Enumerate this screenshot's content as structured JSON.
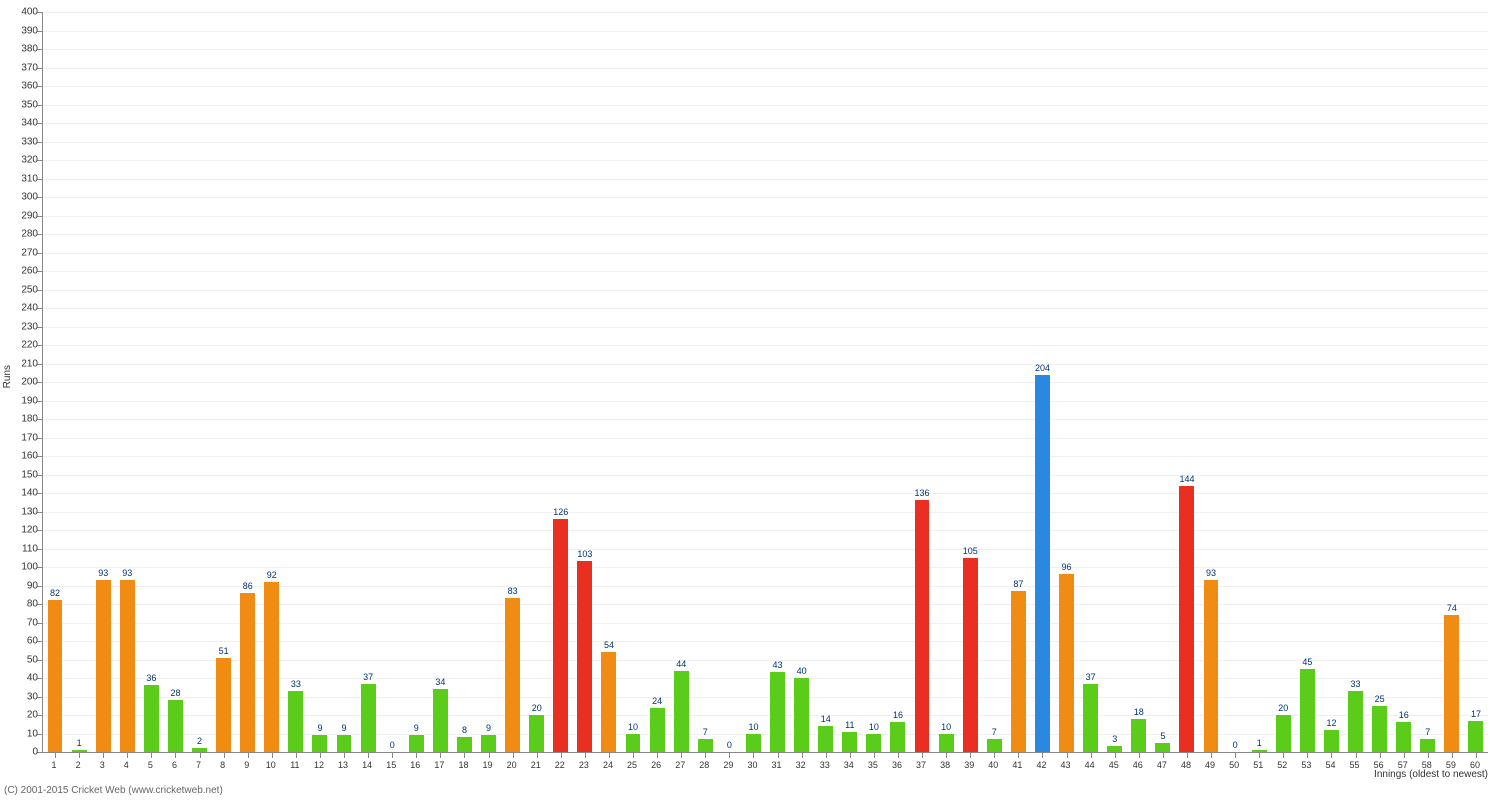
{
  "chart": {
    "type": "bar",
    "y_axis_title": "Runs",
    "x_axis_title": "Innings (oldest to newest)",
    "copyright": "(C) 2001-2015 Cricket Web (www.cricketweb.net)",
    "ylim": [
      0,
      400
    ],
    "ytick_step": 10,
    "background_color": "#ffffff",
    "grid_color": "#f0f0f0",
    "axis_color": "#888888",
    "label_fontsize": 10,
    "value_label_color": "#003377",
    "value_label_fontsize": 9,
    "colors": {
      "green": "#5bcc1a",
      "orange": "#f08b13",
      "red": "#e82f22",
      "blue": "#2a88e0"
    },
    "bar_width_ratio": 0.62,
    "bars": [
      {
        "x": 1,
        "v": 82,
        "c": "orange"
      },
      {
        "x": 2,
        "v": 1,
        "c": "green"
      },
      {
        "x": 3,
        "v": 93,
        "c": "orange"
      },
      {
        "x": 4,
        "v": 93,
        "c": "orange"
      },
      {
        "x": 5,
        "v": 36,
        "c": "green"
      },
      {
        "x": 6,
        "v": 28,
        "c": "green"
      },
      {
        "x": 7,
        "v": 2,
        "c": "green"
      },
      {
        "x": 8,
        "v": 51,
        "c": "orange"
      },
      {
        "x": 9,
        "v": 86,
        "c": "orange"
      },
      {
        "x": 10,
        "v": 92,
        "c": "orange"
      },
      {
        "x": 11,
        "v": 33,
        "c": "green"
      },
      {
        "x": 12,
        "v": 9,
        "c": "green"
      },
      {
        "x": 13,
        "v": 9,
        "c": "green"
      },
      {
        "x": 14,
        "v": 37,
        "c": "green"
      },
      {
        "x": 15,
        "v": 0,
        "c": "green"
      },
      {
        "x": 16,
        "v": 9,
        "c": "green"
      },
      {
        "x": 17,
        "v": 34,
        "c": "green"
      },
      {
        "x": 18,
        "v": 8,
        "c": "green"
      },
      {
        "x": 19,
        "v": 9,
        "c": "green"
      },
      {
        "x": 20,
        "v": 83,
        "c": "orange"
      },
      {
        "x": 21,
        "v": 20,
        "c": "green"
      },
      {
        "x": 22,
        "v": 126,
        "c": "red"
      },
      {
        "x": 23,
        "v": 103,
        "c": "red"
      },
      {
        "x": 24,
        "v": 54,
        "c": "orange"
      },
      {
        "x": 25,
        "v": 10,
        "c": "green"
      },
      {
        "x": 26,
        "v": 24,
        "c": "green"
      },
      {
        "x": 27,
        "v": 44,
        "c": "green"
      },
      {
        "x": 28,
        "v": 7,
        "c": "green"
      },
      {
        "x": 29,
        "v": 0,
        "c": "green"
      },
      {
        "x": 30,
        "v": 10,
        "c": "green"
      },
      {
        "x": 31,
        "v": 43,
        "c": "green"
      },
      {
        "x": 32,
        "v": 40,
        "c": "green"
      },
      {
        "x": 33,
        "v": 14,
        "c": "green"
      },
      {
        "x": 34,
        "v": 11,
        "c": "green"
      },
      {
        "x": 35,
        "v": 10,
        "c": "green"
      },
      {
        "x": 36,
        "v": 16,
        "c": "green"
      },
      {
        "x": 37,
        "v": 136,
        "c": "red"
      },
      {
        "x": 38,
        "v": 10,
        "c": "green"
      },
      {
        "x": 39,
        "v": 105,
        "c": "red"
      },
      {
        "x": 40,
        "v": 7,
        "c": "green"
      },
      {
        "x": 41,
        "v": 87,
        "c": "orange"
      },
      {
        "x": 42,
        "v": 204,
        "c": "blue"
      },
      {
        "x": 43,
        "v": 96,
        "c": "orange"
      },
      {
        "x": 44,
        "v": 37,
        "c": "green"
      },
      {
        "x": 45,
        "v": 3,
        "c": "green"
      },
      {
        "x": 46,
        "v": 18,
        "c": "green"
      },
      {
        "x": 47,
        "v": 5,
        "c": "green"
      },
      {
        "x": 48,
        "v": 144,
        "c": "red"
      },
      {
        "x": 49,
        "v": 93,
        "c": "orange"
      },
      {
        "x": 50,
        "v": 0,
        "c": "green"
      },
      {
        "x": 51,
        "v": 1,
        "c": "green"
      },
      {
        "x": 52,
        "v": 20,
        "c": "green"
      },
      {
        "x": 53,
        "v": 45,
        "c": "green"
      },
      {
        "x": 54,
        "v": 12,
        "c": "green"
      },
      {
        "x": 55,
        "v": 33,
        "c": "green"
      },
      {
        "x": 56,
        "v": 25,
        "c": "green"
      },
      {
        "x": 57,
        "v": 16,
        "c": "green"
      },
      {
        "x": 58,
        "v": 7,
        "c": "green"
      },
      {
        "x": 59,
        "v": 74,
        "c": "orange"
      },
      {
        "x": 60,
        "v": 17,
        "c": "green"
      }
    ]
  }
}
